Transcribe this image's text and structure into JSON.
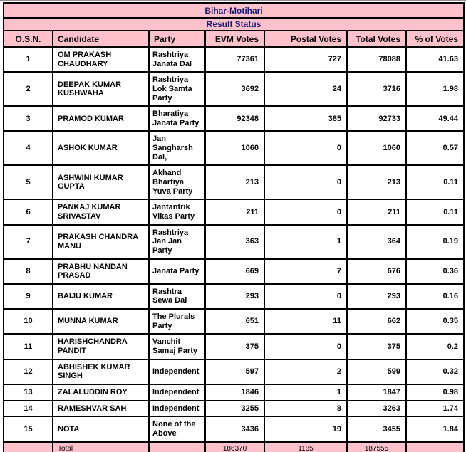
{
  "title": "Bihar-Motihari",
  "subtitle": "Result Status",
  "columns": [
    "O.S.N.",
    "Candidate",
    "Party",
    "EVM Votes",
    "Postal Votes",
    "Total Votes",
    "% of Votes"
  ],
  "rows": [
    {
      "osn": "1",
      "candidate": "OM PRAKASH CHAUDHARY",
      "party": "Rashtriya Janata Dal",
      "evm": "77361",
      "postal": "727",
      "total": "78088",
      "pct": "41.63"
    },
    {
      "osn": "2",
      "candidate": "DEEPAK KUMAR KUSHWAHA",
      "party": "Rashtriya Lok Samta Party",
      "evm": "3692",
      "postal": "24",
      "total": "3716",
      "pct": "1.98"
    },
    {
      "osn": "3",
      "candidate": "PRAMOD KUMAR",
      "party": "Bharatiya Janata Party",
      "evm": "92348",
      "postal": "385",
      "total": "92733",
      "pct": "49.44"
    },
    {
      "osn": "4",
      "candidate": "ASHOK KUMAR",
      "party": "Jan Sangharsh Dal,",
      "evm": "1060",
      "postal": "0",
      "total": "1060",
      "pct": "0.57"
    },
    {
      "osn": "5",
      "candidate": "ASHWINI KUMAR GUPTA",
      "party": "Akhand Bhartiya Yuva Party",
      "evm": "213",
      "postal": "0",
      "total": "213",
      "pct": "0.11"
    },
    {
      "osn": "6",
      "candidate": "PANKAJ KUMAR SRIVASTAV",
      "party": "Jantantrik Vikas Party",
      "evm": "211",
      "postal": "0",
      "total": "211",
      "pct": "0.11"
    },
    {
      "osn": "7",
      "candidate": "PRAKASH CHANDRA MANU",
      "party": "Rashtriya Jan Jan Party",
      "evm": "363",
      "postal": "1",
      "total": "364",
      "pct": "0.19"
    },
    {
      "osn": "8",
      "candidate": "PRABHU NANDAN PRASAD",
      "party": "Janata Party",
      "evm": "669",
      "postal": "7",
      "total": "676",
      "pct": "0.36"
    },
    {
      "osn": "9",
      "candidate": "BAIJU KUMAR",
      "party": "Rashtra Sewa Dal",
      "evm": "293",
      "postal": "0",
      "total": "293",
      "pct": "0.16"
    },
    {
      "osn": "10",
      "candidate": "MUNNA KUMAR",
      "party": "The Plurals Party",
      "evm": "651",
      "postal": "11",
      "total": "662",
      "pct": "0.35"
    },
    {
      "osn": "11",
      "candidate": "HARISHCHANDRA PANDIT",
      "party": "Vanchit Samaj Party",
      "evm": "375",
      "postal": "0",
      "total": "375",
      "pct": "0.2"
    },
    {
      "osn": "12",
      "candidate": "ABHISHEK KUMAR SINGH",
      "party": "Independent",
      "evm": "597",
      "postal": "2",
      "total": "599",
      "pct": "0.32"
    },
    {
      "osn": "13",
      "candidate": "ZALALUDDIN ROY",
      "party": "Independent",
      "evm": "1846",
      "postal": "1",
      "total": "1847",
      "pct": "0.98"
    },
    {
      "osn": "14",
      "candidate": "RAMESHVAR SAH",
      "party": "Independent",
      "evm": "3255",
      "postal": "8",
      "total": "3263",
      "pct": "1.74"
    },
    {
      "osn": "15",
      "candidate": "NOTA",
      "party": "None of the Above",
      "evm": "3436",
      "postal": "19",
      "total": "3455",
      "pct": "1.84"
    }
  ],
  "total_row": {
    "label": "Total",
    "evm": "186370",
    "postal": "1185",
    "total": "187555",
    "pct": ""
  },
  "colors": {
    "pink": "#ffc2cd",
    "title_text": "#191970",
    "border": "#000000",
    "page_bg": "#ffffff"
  }
}
